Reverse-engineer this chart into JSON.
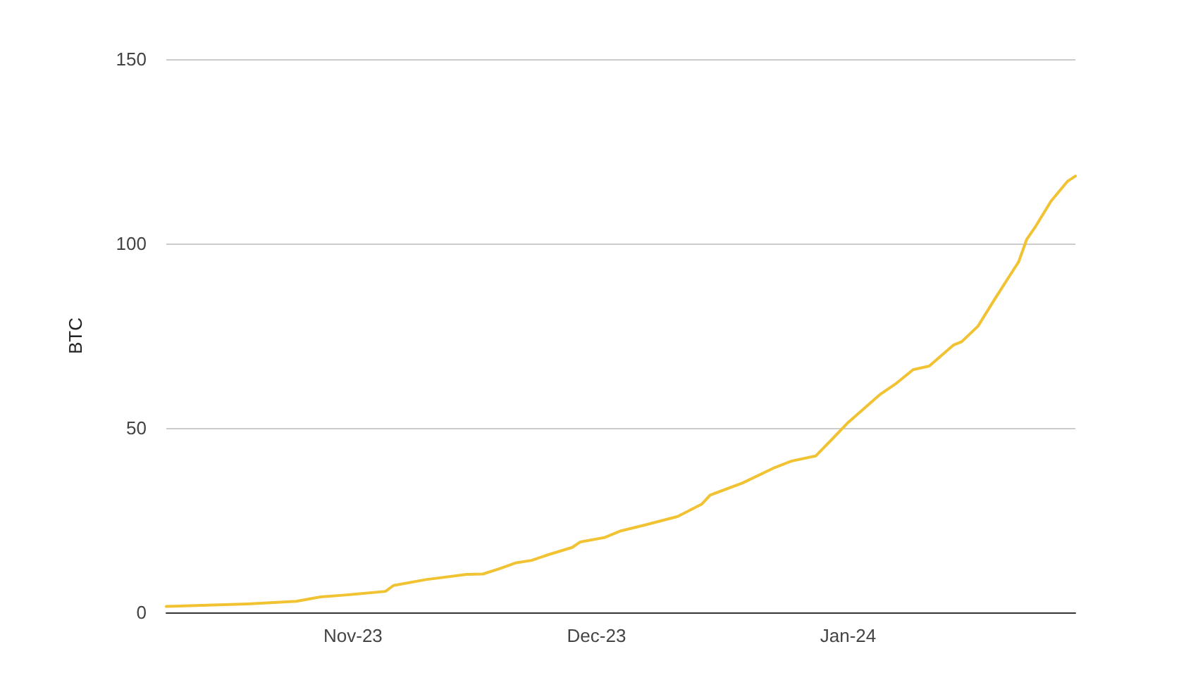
{
  "chart_data": {
    "type": "line",
    "ylabel": "BTC",
    "x": [
      "2023-10-09",
      "2023-10-19",
      "2023-10-25",
      "2023-10-28",
      "2023-10-31",
      "2023-11-05",
      "2023-11-06",
      "2023-11-10",
      "2023-11-15",
      "2023-11-17",
      "2023-11-19",
      "2023-11-21",
      "2023-11-23",
      "2023-11-25",
      "2023-11-28",
      "2023-11-29",
      "2023-12-02",
      "2023-12-04",
      "2023-12-07",
      "2023-12-11",
      "2023-12-14",
      "2023-12-15",
      "2023-12-19",
      "2023-12-23",
      "2023-12-25",
      "2023-12-28",
      "2023-12-30",
      "2024-01-01",
      "2024-01-05",
      "2024-01-07",
      "2024-01-09",
      "2024-01-11",
      "2024-01-14",
      "2024-01-15",
      "2024-01-17",
      "2024-01-19",
      "2024-01-21",
      "2024-01-22",
      "2024-01-23",
      "2024-01-24",
      "2024-01-26",
      "2024-01-28",
      "2024-01-29"
    ],
    "series": [
      {
        "color": "#f1c232",
        "values": [
          1.6,
          2.3,
          3,
          4.2,
          4.7,
          5.7,
          7.3,
          8.9,
          10.3,
          10.4,
          11.8,
          13.4,
          14.1,
          15.6,
          17.6,
          19.1,
          20.3,
          22.1,
          23.7,
          26,
          29.4,
          31.8,
          35.1,
          39.3,
          41,
          42.4,
          46.9,
          51.5,
          59.2,
          62.2,
          65.8,
          66.8,
          72.5,
          73.4,
          77.6,
          84.7,
          91.6,
          95,
          101.1,
          104.3,
          111.5,
          116.8,
          118.3
        ]
      }
    ],
    "xlim": [
      "2023-10-09",
      "2024-01-29"
    ],
    "xticks": [
      {
        "value": "2023-11-01",
        "label": "Nov-23"
      },
      {
        "value": "2023-12-01",
        "label": "Dec-23"
      },
      {
        "value": "2024-01-01",
        "label": "Jan-24"
      }
    ],
    "ylim": [
      0,
      150
    ],
    "yticks": [
      0,
      50,
      100,
      150
    ],
    "grid": "y",
    "marker": "none",
    "line_style": "solid"
  }
}
